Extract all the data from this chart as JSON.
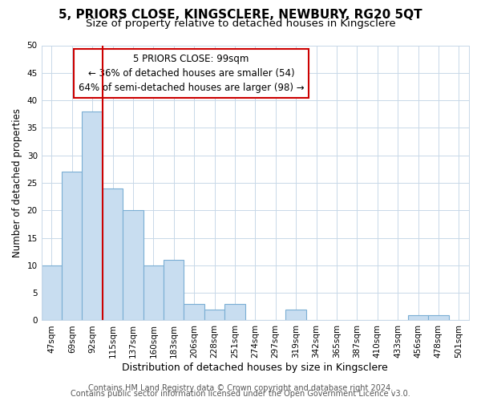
{
  "title": "5, PRIORS CLOSE, KINGSCLERE, NEWBURY, RG20 5QT",
  "subtitle": "Size of property relative to detached houses in Kingsclere",
  "xlabel": "Distribution of detached houses by size in Kingsclere",
  "ylabel": "Number of detached properties",
  "bar_labels": [
    "47sqm",
    "69sqm",
    "92sqm",
    "115sqm",
    "137sqm",
    "160sqm",
    "183sqm",
    "206sqm",
    "228sqm",
    "251sqm",
    "274sqm",
    "297sqm",
    "319sqm",
    "342sqm",
    "365sqm",
    "387sqm",
    "410sqm",
    "433sqm",
    "456sqm",
    "478sqm",
    "501sqm"
  ],
  "bar_values": [
    10,
    27,
    38,
    24,
    20,
    10,
    11,
    3,
    2,
    3,
    0,
    0,
    2,
    0,
    0,
    0,
    0,
    0,
    1,
    1,
    0
  ],
  "bar_color": "#c8ddf0",
  "bar_edge_color": "#7aaed4",
  "vline_position": 2.5,
  "vline_color": "#cc0000",
  "ylim": [
    0,
    50
  ],
  "yticks": [
    0,
    5,
    10,
    15,
    20,
    25,
    30,
    35,
    40,
    45,
    50
  ],
  "annotation_title": "5 PRIORS CLOSE: 99sqm",
  "annotation_line1": "← 36% of detached houses are smaller (54)",
  "annotation_line2": "64% of semi-detached houses are larger (98) →",
  "annotation_box_facecolor": "#ffffff",
  "annotation_box_edgecolor": "#cc0000",
  "footer1": "Contains HM Land Registry data © Crown copyright and database right 2024.",
  "footer2": "Contains public sector information licensed under the Open Government Licence v3.0.",
  "background_color": "#ffffff",
  "plot_bg_color": "#ffffff",
  "grid_color": "#c8d8e8",
  "title_fontsize": 11,
  "subtitle_fontsize": 9.5,
  "xlabel_fontsize": 9,
  "ylabel_fontsize": 8.5,
  "tick_fontsize": 7.5,
  "annotation_fontsize": 8.5,
  "footer_fontsize": 7
}
